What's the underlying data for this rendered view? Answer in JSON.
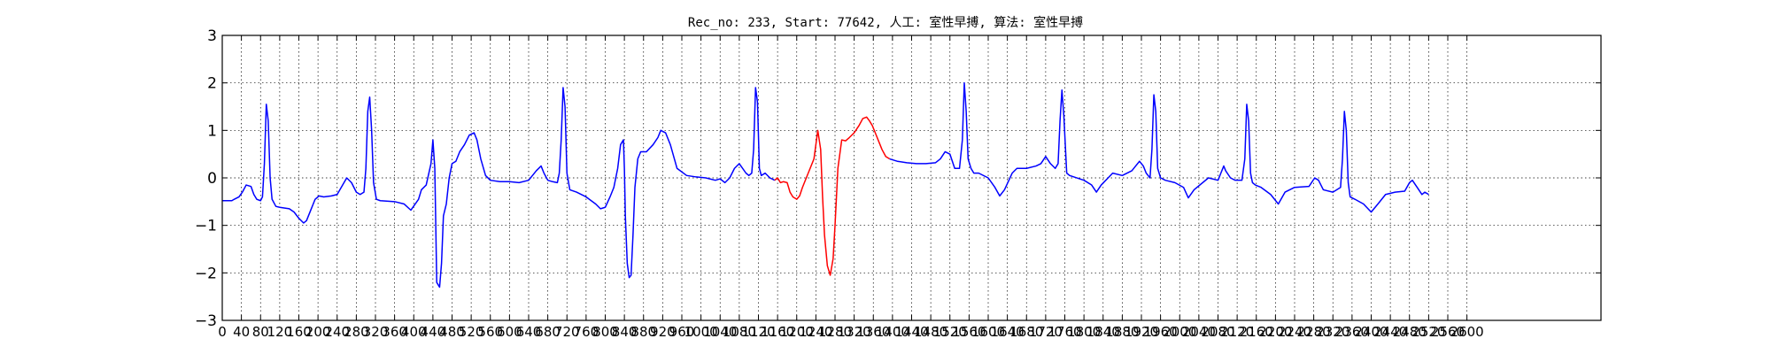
{
  "chart_data": {
    "type": "line",
    "title": "Rec_no: 233, Start: 77642, 人工: 室性早搏, 算法: 室性早搏",
    "xlabel": "",
    "ylabel": "",
    "xlim": [
      0,
      2880
    ],
    "ylim": [
      -3,
      3
    ],
    "yticks": [
      3,
      2,
      1,
      0,
      -1,
      -2,
      -3
    ],
    "ytick_labels": [
      "3",
      "2",
      "1",
      "0",
      "−1",
      "−2",
      "−3"
    ],
    "xticks": [
      0,
      40,
      80,
      120,
      160,
      200,
      240,
      280,
      320,
      360,
      400,
      440,
      480,
      520,
      560,
      600,
      640,
      680,
      720,
      760,
      800,
      840,
      880,
      920,
      960,
      1000,
      1040,
      1080,
      1120,
      1160,
      1200,
      1240,
      1280,
      1320,
      1360,
      1400,
      1440,
      1480,
      1520,
      1560,
      1600,
      1640,
      1680,
      1720,
      1760,
      1800,
      1840,
      1880,
      1920,
      1960,
      2000,
      2040,
      2080,
      2120,
      2160,
      2200,
      2240,
      2280,
      2320,
      2360,
      2400,
      2440,
      2480,
      2520,
      2560,
      2600
    ],
    "grid": true,
    "series": [
      {
        "color": "#0000ff",
        "x": [
          0,
          20,
          25,
          35,
          42,
          50,
          60,
          66,
          72,
          80,
          84,
          88,
          92,
          96,
          100,
          104,
          112,
          120,
          140,
          150,
          160,
          170,
          176,
          184,
          194,
          202,
          212,
          228,
          240,
          260,
          270,
          280,
          288,
          296,
          300,
          304,
          308,
          312,
          316,
          322,
          330,
          360,
          380,
          394,
          410,
          416,
          426,
          436,
          440,
          444,
          446,
          448,
          454,
          458,
          462,
          468,
          474,
          480,
          488,
          496,
          506,
          516,
          526,
          532,
          540,
          550,
          560,
          580,
          600,
          620,
          640,
          656,
          666,
          672,
          680,
          690,
          700,
          704,
          708,
          712,
          716,
          720,
          726,
          740,
          760,
          780,
          790,
          800,
          810,
          818,
          826,
          832,
          838,
          840,
          842,
          846,
          850,
          854,
          858,
          862,
          868,
          874,
          886,
          900,
          910,
          916,
          926,
          936,
          950,
          970,
          990,
          1010,
          1030,
          1040,
          1050,
          1060,
          1070,
          1080,
          1094,
          1100,
          1106,
          1110,
          1114,
          1118,
          1122,
          1126,
          1134,
          1144,
          1154
        ],
        "y": [
          -0.48,
          -0.48,
          -0.45,
          -0.4,
          -0.3,
          -0.15,
          -0.18,
          -0.35,
          -0.45,
          -0.48,
          -0.4,
          0.3,
          1.55,
          1.2,
          0.0,
          -0.45,
          -0.6,
          -0.62,
          -0.65,
          -0.72,
          -0.85,
          -0.95,
          -0.9,
          -0.7,
          -0.45,
          -0.38,
          -0.4,
          -0.38,
          -0.35,
          0.0,
          -0.1,
          -0.3,
          -0.35,
          -0.3,
          0.2,
          1.4,
          1.7,
          1.0,
          -0.1,
          -0.45,
          -0.48,
          -0.5,
          -0.55,
          -0.68,
          -0.45,
          -0.25,
          -0.15,
          0.3,
          0.8,
          0.2,
          -1.0,
          -2.2,
          -2.3,
          -1.8,
          -0.8,
          -0.55,
          0.0,
          0.3,
          0.35,
          0.55,
          0.7,
          0.9,
          0.95,
          0.8,
          0.4,
          0.05,
          -0.05,
          -0.08,
          -0.08,
          -0.1,
          -0.05,
          0.15,
          0.25,
          0.1,
          -0.05,
          -0.08,
          -0.1,
          0.1,
          0.8,
          1.9,
          1.5,
          0.1,
          -0.25,
          -0.3,
          -0.4,
          -0.55,
          -0.65,
          -0.62,
          -0.4,
          -0.2,
          0.2,
          0.7,
          0.8,
          0.2,
          -0.8,
          -1.8,
          -2.1,
          -2.05,
          -1.2,
          -0.2,
          0.4,
          0.55,
          0.55,
          0.7,
          0.85,
          1.0,
          0.95,
          0.7,
          0.2,
          0.05,
          0.02,
          0.0,
          -0.05,
          -0.02,
          -0.1,
          0.0,
          0.2,
          0.3,
          0.1,
          0.05,
          0.1,
          0.6,
          1.9,
          1.6,
          0.2,
          0.05,
          0.1,
          0.0,
          -0.05
        ]
      },
      {
        "color": "#ff0000",
        "x": [
          1154,
          1160,
          1166,
          1172,
          1180,
          1186,
          1192,
          1200,
          1206,
          1212,
          1220,
          1228,
          1236,
          1244,
          1250,
          1254,
          1258,
          1264,
          1270,
          1276,
          1280,
          1286,
          1294,
          1302,
          1310,
          1320,
          1330,
          1338,
          1346,
          1352,
          1358,
          1364,
          1370,
          1378,
          1386,
          1394
        ],
        "y": [
          -0.05,
          0.0,
          -0.1,
          -0.08,
          -0.1,
          -0.3,
          -0.4,
          -0.45,
          -0.38,
          -0.2,
          0.0,
          0.2,
          0.4,
          1.0,
          0.6,
          -0.4,
          -1.2,
          -1.85,
          -2.05,
          -1.7,
          -1.0,
          0.2,
          0.8,
          0.78,
          0.85,
          0.95,
          1.1,
          1.25,
          1.28,
          1.2,
          1.1,
          0.95,
          0.8,
          0.6,
          0.45,
          0.4
        ]
      },
      {
        "color": "#0000ff",
        "x": [
          1394,
          1410,
          1430,
          1450,
          1470,
          1490,
          1500,
          1510,
          1520,
          1530,
          1540,
          1546,
          1550,
          1554,
          1558,
          1564,
          1570,
          1580,
          1600,
          1614,
          1624,
          1634,
          1650,
          1660,
          1680,
          1700,
          1710,
          1720,
          1730,
          1740,
          1746,
          1750,
          1754,
          1758,
          1764,
          1770,
          1800,
          1816,
          1826,
          1836,
          1860,
          1880,
          1900,
          1908,
          1916,
          1924,
          1930,
          1938,
          1942,
          1946,
          1950,
          1954,
          1960,
          1970,
          1990,
          2008,
          2018,
          2030,
          2060,
          2080,
          2086,
          2092,
          2096,
          2106,
          2116,
          2130,
          2136,
          2140,
          2144,
          2148,
          2152,
          2158,
          2170,
          2190,
          2206,
          2220,
          2240,
          2270,
          2282,
          2290,
          2300,
          2320,
          2336,
          2340,
          2344,
          2348,
          2352,
          2356,
          2366,
          2384,
          2400,
          2414,
          2430,
          2450,
          2470,
          2480,
          2486,
          2496,
          2506,
          2512,
          2520
        ],
        "y": [
          0.4,
          0.35,
          0.32,
          0.3,
          0.3,
          0.32,
          0.4,
          0.55,
          0.5,
          0.2,
          0.2,
          0.8,
          2.0,
          1.4,
          0.4,
          0.2,
          0.1,
          0.1,
          0.0,
          -0.2,
          -0.38,
          -0.25,
          0.1,
          0.2,
          0.2,
          0.25,
          0.3,
          0.45,
          0.3,
          0.2,
          0.3,
          1.2,
          1.85,
          1.3,
          0.1,
          0.05,
          -0.05,
          -0.15,
          -0.3,
          -0.15,
          0.1,
          0.05,
          0.15,
          0.25,
          0.35,
          0.25,
          0.1,
          0.0,
          0.6,
          1.75,
          1.4,
          0.2,
          0.0,
          -0.05,
          -0.1,
          -0.2,
          -0.42,
          -0.25,
          0.0,
          -0.05,
          0.1,
          0.25,
          0.15,
          0.0,
          -0.05,
          -0.05,
          0.4,
          1.55,
          1.2,
          0.1,
          -0.1,
          -0.15,
          -0.2,
          -0.35,
          -0.55,
          -0.3,
          -0.2,
          -0.18,
          0.0,
          -0.05,
          -0.25,
          -0.3,
          -0.2,
          0.4,
          1.4,
          1.0,
          -0.1,
          -0.4,
          -0.45,
          -0.55,
          -0.72,
          -0.55,
          -0.35,
          -0.3,
          -0.28,
          -0.1,
          -0.05,
          -0.2,
          -0.35,
          -0.3,
          -0.35
        ]
      }
    ]
  }
}
